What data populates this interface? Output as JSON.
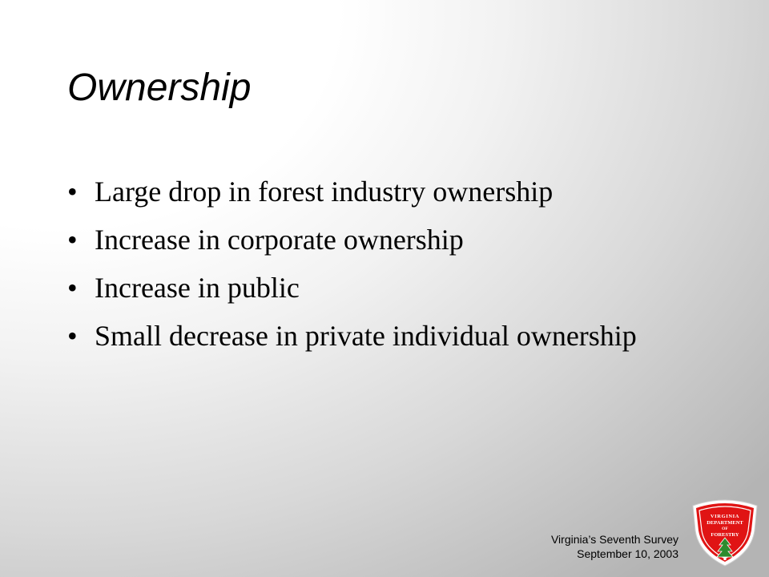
{
  "slide": {
    "title": "Ownership",
    "bullet_glyph": "•",
    "bullets": [
      "Large drop in forest industry ownership",
      "Increase in corporate ownership",
      "Increase in public",
      "Small decrease in private individual ownership"
    ]
  },
  "footer": {
    "line1": "Virginia’s Seventh Survey",
    "line2": "September 10, 2003"
  },
  "logo": {
    "line1": "VIRGINIA",
    "line2": "DEPARTMENT",
    "line3": "OF",
    "line4": "FORESTRY",
    "shield_color": "#e01414",
    "icon": "pine-tree-icon"
  }
}
